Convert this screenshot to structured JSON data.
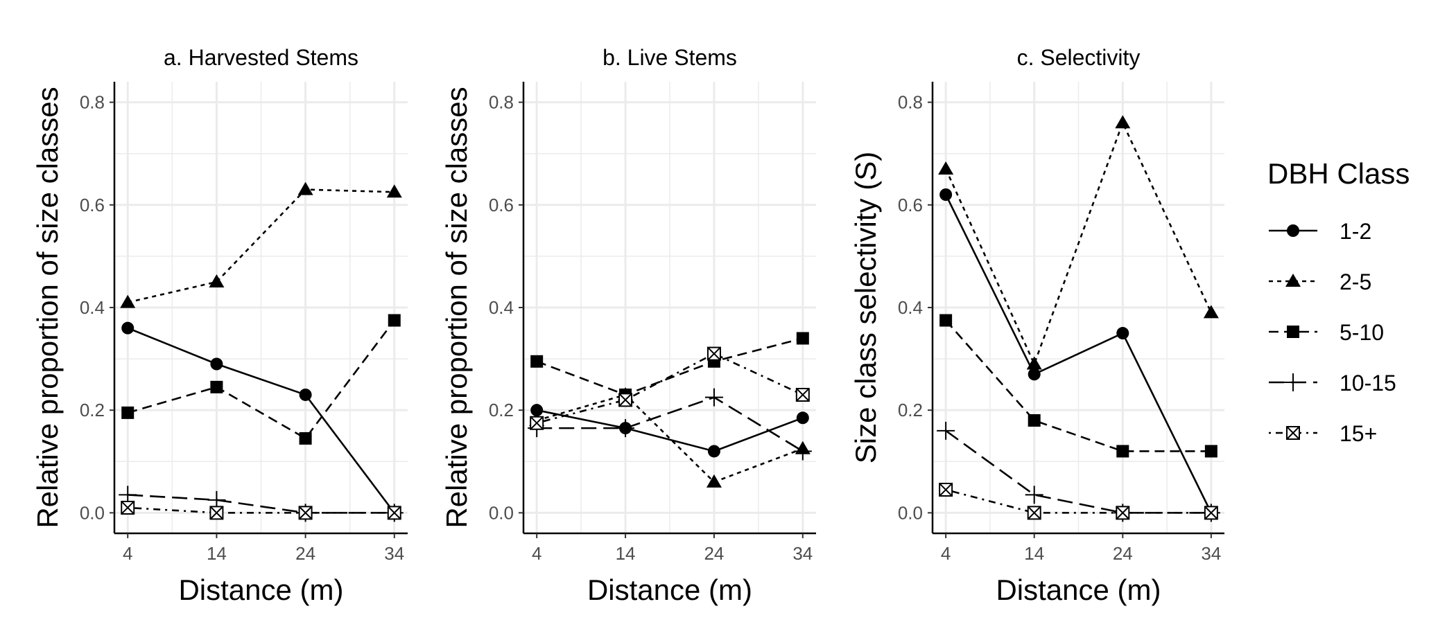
{
  "legend": {
    "title": "DBH Class",
    "entries": [
      {
        "label": "1-2",
        "dash": "solid",
        "marker": "circle"
      },
      {
        "label": "2-5",
        "dash": "dotted",
        "marker": "triangle"
      },
      {
        "label": "5-10",
        "dash": "dashed",
        "marker": "square"
      },
      {
        "label": "10-15",
        "dash": "longdash",
        "marker": "plus"
      },
      {
        "label": "15+",
        "dash": "dotdash",
        "marker": "boxx"
      }
    ]
  },
  "chart_data": [
    {
      "type": "line",
      "title": "a. Harvested Stems",
      "xlabel": "Distance (m)",
      "ylabel": "Relative proportion of size classes",
      "x": [
        4,
        14,
        24,
        34
      ],
      "xticks": [
        4,
        14,
        24,
        34
      ],
      "yticks": [
        0.0,
        0.2,
        0.4,
        0.6,
        0.8
      ],
      "ytick_labels": [
        "0.0",
        "0.2",
        "0.4",
        "0.6",
        "0.8"
      ],
      "ylim": [
        -0.04,
        0.84
      ],
      "grid": true,
      "series": [
        {
          "name": "1-2",
          "values": [
            0.36,
            0.29,
            0.23,
            0.0
          ]
        },
        {
          "name": "2-5",
          "values": [
            0.41,
            0.45,
            0.63,
            0.625
          ]
        },
        {
          "name": "5-10",
          "values": [
            0.195,
            0.245,
            0.145,
            0.375
          ]
        },
        {
          "name": "10-15",
          "values": [
            0.035,
            0.025,
            0.0,
            0.0
          ]
        },
        {
          "name": "15+",
          "values": [
            0.01,
            0.0,
            0.0,
            0.0
          ]
        }
      ]
    },
    {
      "type": "line",
      "title": "b. Live Stems",
      "xlabel": "Distance (m)",
      "ylabel": "Relative proportion of size classes",
      "x": [
        4,
        14,
        24,
        34
      ],
      "xticks": [
        4,
        14,
        24,
        34
      ],
      "yticks": [
        0.0,
        0.2,
        0.4,
        0.6,
        0.8
      ],
      "ytick_labels": [
        "0.0",
        "0.2",
        "0.4",
        "0.6",
        "0.8"
      ],
      "ylim": [
        -0.04,
        0.84
      ],
      "grid": true,
      "series": [
        {
          "name": "1-2",
          "values": [
            0.2,
            0.165,
            0.12,
            0.185
          ]
        },
        {
          "name": "2-5",
          "values": [
            0.18,
            0.23,
            0.06,
            0.125
          ]
        },
        {
          "name": "5-10",
          "values": [
            0.295,
            0.23,
            0.295,
            0.34
          ]
        },
        {
          "name": "10-15",
          "values": [
            0.165,
            0.165,
            0.225,
            0.12
          ]
        },
        {
          "name": "15+",
          "values": [
            0.175,
            0.22,
            0.31,
            0.23
          ]
        }
      ]
    },
    {
      "type": "line",
      "title": "c. Selectivity",
      "xlabel": "Distance (m)",
      "ylabel": "Size class selectivity (S)",
      "x": [
        4,
        14,
        24,
        34
      ],
      "xticks": [
        4,
        14,
        24,
        34
      ],
      "yticks": [
        0.0,
        0.2,
        0.4,
        0.6,
        0.8
      ],
      "ytick_labels": [
        "0.0",
        "0.2",
        "0.4",
        "0.6",
        "0.8"
      ],
      "ylim": [
        -0.04,
        0.84
      ],
      "grid": true,
      "series": [
        {
          "name": "1-2",
          "values": [
            0.62,
            0.27,
            0.35,
            0.0
          ]
        },
        {
          "name": "2-5",
          "values": [
            0.67,
            0.29,
            0.76,
            0.39
          ]
        },
        {
          "name": "5-10",
          "values": [
            0.375,
            0.18,
            0.12,
            0.12
          ]
        },
        {
          "name": "10-15",
          "values": [
            0.16,
            0.035,
            0.0,
            0.0
          ]
        },
        {
          "name": "15+",
          "values": [
            0.045,
            0.0,
            0.0,
            0.0
          ]
        }
      ]
    }
  ]
}
